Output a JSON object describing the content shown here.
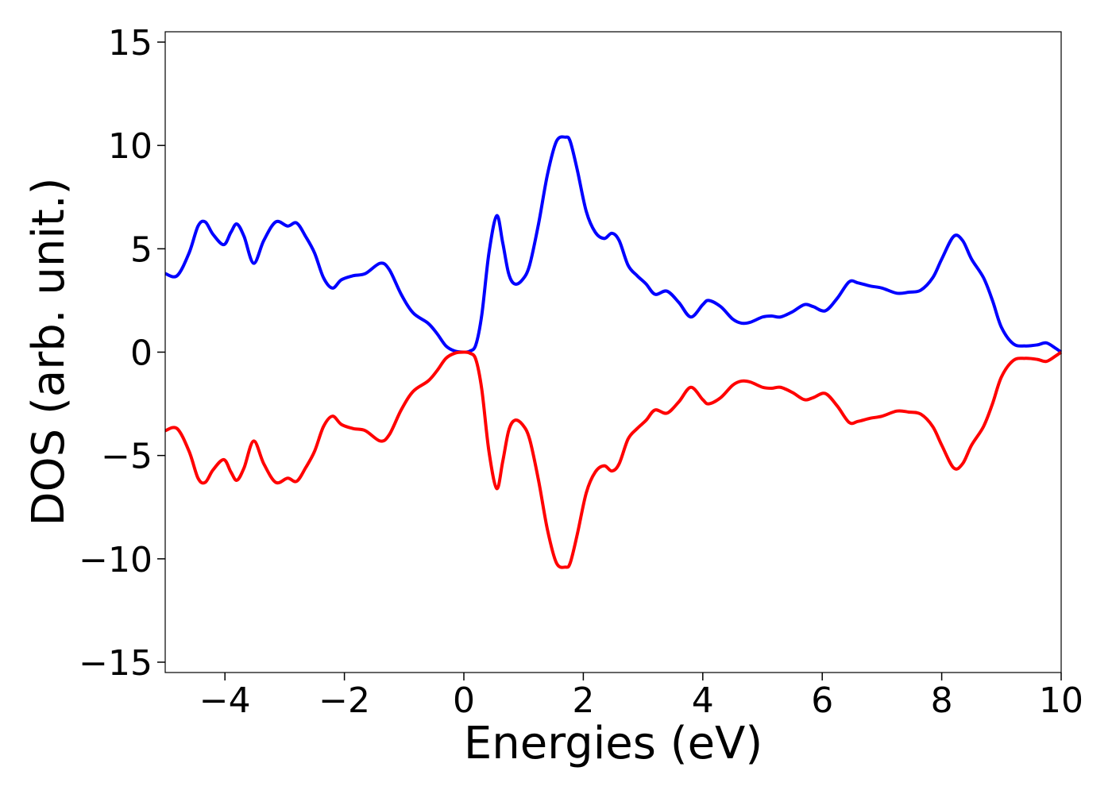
{
  "chart_data": {
    "type": "line",
    "title": "",
    "xlabel": "Energies (eV)",
    "ylabel": "DOS (arb. unit.)",
    "xlim": [
      -5,
      10
    ],
    "ylim": [
      -15.5,
      15.5
    ],
    "xticks": [
      -4,
      -2,
      0,
      2,
      4,
      6,
      8,
      10
    ],
    "yticks": [
      -15,
      -10,
      -5,
      0,
      5,
      10,
      15
    ],
    "xtick_labels": [
      "−4",
      "−2",
      "0",
      "2",
      "4",
      "6",
      "8",
      "10"
    ],
    "ytick_labels": [
      "−15",
      "−10",
      "−5",
      "0",
      "5",
      "10",
      "15"
    ],
    "grid": false,
    "legend": "none",
    "series": [
      {
        "color": "#0000ff",
        "x": [
          -5.0,
          -4.8,
          -4.6,
          -4.45,
          -4.33,
          -4.2,
          -4.02,
          -3.9,
          -3.8,
          -3.68,
          -3.52,
          -3.35,
          -3.15,
          -2.95,
          -2.8,
          -2.65,
          -2.5,
          -2.35,
          -2.2,
          -2.05,
          -1.85,
          -1.65,
          -1.4,
          -1.25,
          -1.05,
          -0.85,
          -0.6,
          -0.45,
          -0.3,
          -0.15,
          0.0,
          0.1,
          0.2,
          0.3,
          0.42,
          0.55,
          0.65,
          0.75,
          0.85,
          0.98,
          1.1,
          1.25,
          1.4,
          1.55,
          1.7,
          1.78,
          1.9,
          2.05,
          2.2,
          2.35,
          2.48,
          2.6,
          2.75,
          2.9,
          3.05,
          3.2,
          3.4,
          3.6,
          3.8,
          4.0,
          4.1,
          4.3,
          4.5,
          4.65,
          4.8,
          5.0,
          5.15,
          5.3,
          5.5,
          5.7,
          5.85,
          6.05,
          6.25,
          6.45,
          6.6,
          6.8,
          7.0,
          7.25,
          7.45,
          7.65,
          7.85,
          8.0,
          8.2,
          8.35,
          8.5,
          8.7,
          8.85,
          9.0,
          9.2,
          9.4,
          9.6,
          9.75,
          9.9,
          10.0
        ],
        "y": [
          3.8,
          3.7,
          4.8,
          6.1,
          6.3,
          5.7,
          5.2,
          5.8,
          6.2,
          5.6,
          4.3,
          5.4,
          6.3,
          6.1,
          6.25,
          5.6,
          4.8,
          3.6,
          3.1,
          3.5,
          3.7,
          3.8,
          4.3,
          4.0,
          2.8,
          1.9,
          1.4,
          0.9,
          0.3,
          0.05,
          0.0,
          0.05,
          0.35,
          1.8,
          4.8,
          6.6,
          5.3,
          3.8,
          3.3,
          3.5,
          4.2,
          6.2,
          8.6,
          10.2,
          10.4,
          10.2,
          8.8,
          6.8,
          5.8,
          5.5,
          5.75,
          5.4,
          4.2,
          3.7,
          3.3,
          2.8,
          2.95,
          2.4,
          1.7,
          2.3,
          2.5,
          2.2,
          1.6,
          1.4,
          1.45,
          1.7,
          1.75,
          1.7,
          1.95,
          2.3,
          2.2,
          2.0,
          2.6,
          3.4,
          3.35,
          3.2,
          3.1,
          2.85,
          2.9,
          3.0,
          3.6,
          4.5,
          5.6,
          5.4,
          4.5,
          3.6,
          2.5,
          1.2,
          0.4,
          0.3,
          0.35,
          0.45,
          0.2,
          0.0
        ]
      },
      {
        "color": "#ff0000",
        "x": [
          -5.0,
          -4.8,
          -4.6,
          -4.45,
          -4.33,
          -4.2,
          -4.02,
          -3.9,
          -3.8,
          -3.68,
          -3.52,
          -3.35,
          -3.15,
          -2.95,
          -2.8,
          -2.65,
          -2.5,
          -2.35,
          -2.2,
          -2.05,
          -1.85,
          -1.65,
          -1.4,
          -1.25,
          -1.05,
          -0.85,
          -0.6,
          -0.45,
          -0.3,
          -0.15,
          0.0,
          0.1,
          0.2,
          0.3,
          0.42,
          0.55,
          0.65,
          0.75,
          0.85,
          0.98,
          1.1,
          1.25,
          1.4,
          1.55,
          1.7,
          1.78,
          1.9,
          2.05,
          2.2,
          2.35,
          2.48,
          2.6,
          2.75,
          2.9,
          3.05,
          3.2,
          3.4,
          3.6,
          3.8,
          4.0,
          4.1,
          4.3,
          4.5,
          4.65,
          4.8,
          5.0,
          5.15,
          5.3,
          5.5,
          5.7,
          5.85,
          6.05,
          6.25,
          6.45,
          6.6,
          6.8,
          7.0,
          7.25,
          7.45,
          7.65,
          7.85,
          8.0,
          8.2,
          8.35,
          8.5,
          8.7,
          8.85,
          9.0,
          9.2,
          9.4,
          9.6,
          9.75,
          9.9,
          10.0
        ],
        "y": [
          -3.8,
          -3.7,
          -4.8,
          -6.1,
          -6.3,
          -5.7,
          -5.2,
          -5.8,
          -6.2,
          -5.6,
          -4.3,
          -5.4,
          -6.3,
          -6.1,
          -6.25,
          -5.6,
          -4.8,
          -3.6,
          -3.1,
          -3.5,
          -3.7,
          -3.8,
          -4.3,
          -4.0,
          -2.8,
          -1.9,
          -1.4,
          -0.9,
          -0.3,
          -0.05,
          0.0,
          -0.05,
          -0.35,
          -1.8,
          -4.8,
          -6.6,
          -5.3,
          -3.8,
          -3.3,
          -3.5,
          -4.2,
          -6.2,
          -8.6,
          -10.2,
          -10.4,
          -10.2,
          -8.8,
          -6.8,
          -5.8,
          -5.5,
          -5.75,
          -5.4,
          -4.2,
          -3.7,
          -3.3,
          -2.8,
          -2.95,
          -2.4,
          -1.7,
          -2.3,
          -2.5,
          -2.2,
          -1.6,
          -1.4,
          -1.45,
          -1.7,
          -1.75,
          -1.7,
          -1.95,
          -2.3,
          -2.2,
          -2.0,
          -2.6,
          -3.4,
          -3.35,
          -3.2,
          -3.1,
          -2.85,
          -2.9,
          -3.0,
          -3.6,
          -4.5,
          -5.6,
          -5.4,
          -4.5,
          -3.6,
          -2.5,
          -1.2,
          -0.4,
          -0.3,
          -0.35,
          -0.45,
          -0.2,
          0.0
        ]
      }
    ]
  }
}
